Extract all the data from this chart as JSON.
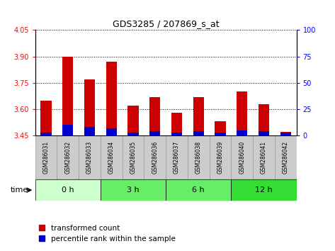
{
  "title": "GDS3285 / 207869_s_at",
  "samples": [
    "GSM286031",
    "GSM286032",
    "GSM286033",
    "GSM286034",
    "GSM286035",
    "GSM286036",
    "GSM286037",
    "GSM286038",
    "GSM286039",
    "GSM286040",
    "GSM286041",
    "GSM286042"
  ],
  "transformed_count": [
    3.65,
    3.9,
    3.77,
    3.87,
    3.62,
    3.67,
    3.58,
    3.67,
    3.53,
    3.7,
    3.63,
    3.47
  ],
  "percentile_rank": [
    3,
    10,
    8,
    7,
    3,
    4,
    3,
    4,
    3,
    5,
    4,
    3
  ],
  "baseline": 3.45,
  "ylim_left": [
    3.45,
    4.05
  ],
  "ylim_right": [
    0,
    100
  ],
  "yticks_left": [
    3.45,
    3.6,
    3.75,
    3.9,
    4.05
  ],
  "yticks_right": [
    0,
    25,
    50,
    75,
    100
  ],
  "time_groups": [
    {
      "label": "0 h",
      "start": 0,
      "end": 3,
      "color": "#ccffcc"
    },
    {
      "label": "3 h",
      "start": 3,
      "end": 6,
      "color": "#66ee66"
    },
    {
      "label": "6 h",
      "start": 6,
      "end": 9,
      "color": "#66ee66"
    },
    {
      "label": "12 h",
      "start": 9,
      "end": 12,
      "color": "#33dd33"
    }
  ],
  "bar_color_red": "#cc0000",
  "bar_color_blue": "#0000cc",
  "bar_width": 0.5,
  "legend_red_label": "transformed count",
  "legend_blue_label": "percentile rank within the sample",
  "sample_bg_color": "#cccccc",
  "sample_bg_edge": "#999999"
}
